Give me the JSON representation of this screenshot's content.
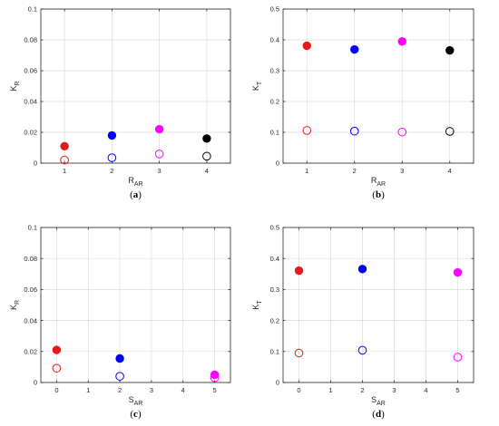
{
  "chart_data": [
    {
      "type": "scatter",
      "caption": {
        "open": "(",
        "letter": "a",
        "close": ")"
      },
      "xlabel": {
        "main": "R",
        "sub": "AR"
      },
      "ylabel": {
        "main": "K",
        "sub": "R"
      },
      "xlim": [
        0.5,
        4.5
      ],
      "ylim": [
        0,
        0.1
      ],
      "xticks": [
        1,
        2,
        3,
        4
      ],
      "xtick_labels": [
        "1",
        "2",
        "3",
        "4"
      ],
      "yticks": [
        0,
        0.02,
        0.04,
        0.06,
        0.08,
        0.1
      ],
      "ytick_labels": [
        "0",
        "0.02",
        "0.04",
        "0.06",
        "0.08",
        "0.1"
      ],
      "grid": true,
      "points": [
        {
          "x": 1,
          "y": 0.011,
          "filled": true,
          "color": "#e41a1c"
        },
        {
          "x": 1,
          "y": 0.002,
          "filled": false,
          "color": "#e41a1c"
        },
        {
          "x": 2,
          "y": 0.018,
          "filled": true,
          "color": "#0000ff"
        },
        {
          "x": 2,
          "y": 0.0035,
          "filled": false,
          "color": "#0000ff"
        },
        {
          "x": 3,
          "y": 0.022,
          "filled": true,
          "color": "#ff00ff"
        },
        {
          "x": 3,
          "y": 0.006,
          "filled": false,
          "color": "#ff00ff"
        },
        {
          "x": 4,
          "y": 0.016,
          "filled": true,
          "color": "#000000"
        },
        {
          "x": 4,
          "y": 0.0045,
          "filled": false,
          "color": "#000000"
        }
      ]
    },
    {
      "type": "scatter",
      "caption": {
        "open": "(",
        "letter": "b",
        "close": ")"
      },
      "xlabel": {
        "main": "R",
        "sub": "AR"
      },
      "ylabel": {
        "main": "K",
        "sub": "T"
      },
      "xlim": [
        0.5,
        4.5
      ],
      "ylim": [
        0,
        0.5
      ],
      "xticks": [
        1,
        2,
        3,
        4
      ],
      "xtick_labels": [
        "1",
        "2",
        "3",
        "4"
      ],
      "yticks": [
        0,
        0.1,
        0.2,
        0.3,
        0.4,
        0.5
      ],
      "ytick_labels": [
        "0",
        "0.1",
        "0.2",
        "0.3",
        "0.4",
        "0.5"
      ],
      "grid": true,
      "points": [
        {
          "x": 1,
          "y": 0.381,
          "filled": true,
          "color": "#e41a1c"
        },
        {
          "x": 1,
          "y": 0.106,
          "filled": false,
          "color": "#e41a1c"
        },
        {
          "x": 2,
          "y": 0.369,
          "filled": true,
          "color": "#0000ff"
        },
        {
          "x": 2,
          "y": 0.104,
          "filled": false,
          "color": "#0000ff"
        },
        {
          "x": 3,
          "y": 0.395,
          "filled": true,
          "color": "#ff00ff"
        },
        {
          "x": 3,
          "y": 0.101,
          "filled": false,
          "color": "#ff00ff"
        },
        {
          "x": 4,
          "y": 0.366,
          "filled": true,
          "color": "#000000"
        },
        {
          "x": 4,
          "y": 0.103,
          "filled": false,
          "color": "#000000"
        }
      ]
    },
    {
      "type": "scatter",
      "caption": {
        "open": "(",
        "letter": "c",
        "close": ")"
      },
      "xlabel": {
        "main": "S",
        "sub": "AR"
      },
      "ylabel": {
        "main": "K",
        "sub": "R"
      },
      "xlim": [
        -0.5,
        5.5
      ],
      "ylim": [
        0,
        0.1
      ],
      "xticks": [
        0,
        1,
        2,
        3,
        4,
        5
      ],
      "xtick_labels": [
        "0",
        "1",
        "2",
        "3",
        "4",
        "5"
      ],
      "yticks": [
        0,
        0.02,
        0.04,
        0.06,
        0.08,
        0.1
      ],
      "ytick_labels": [
        "0",
        "0.02",
        "0.04",
        "0.06",
        "0.08",
        "0.1"
      ],
      "grid": true,
      "points": [
        {
          "x": 0,
          "y": 0.021,
          "filled": true,
          "color": "#e41a1c"
        },
        {
          "x": 0,
          "y": 0.0092,
          "filled": false,
          "color": "#e41a1c"
        },
        {
          "x": 2,
          "y": 0.0155,
          "filled": true,
          "color": "#0000ff"
        },
        {
          "x": 2,
          "y": 0.004,
          "filled": false,
          "color": "#0000ff"
        },
        {
          "x": 5,
          "y": 0.005,
          "filled": true,
          "color": "#ff00ff"
        },
        {
          "x": 5,
          "y": 0.003,
          "filled": false,
          "color": "#ff00ff"
        }
      ]
    },
    {
      "type": "scatter",
      "caption": {
        "open": "(",
        "letter": "d",
        "close": ")"
      },
      "xlabel": {
        "main": "S",
        "sub": "AR"
      },
      "ylabel": {
        "main": "K",
        "sub": "T"
      },
      "xlim": [
        -0.5,
        5.5
      ],
      "ylim": [
        0,
        0.5
      ],
      "xticks": [
        0,
        1,
        2,
        3,
        4,
        5
      ],
      "xtick_labels": [
        "0",
        "1",
        "2",
        "3",
        "4",
        "5"
      ],
      "yticks": [
        0,
        0.1,
        0.2,
        0.3,
        0.4,
        0.5
      ],
      "ytick_labels": [
        "0",
        "0.1",
        "0.2",
        "0.3",
        "0.4",
        "0.5"
      ],
      "grid": true,
      "points": [
        {
          "x": 0,
          "y": 0.361,
          "filled": true,
          "color": "#e41a1c"
        },
        {
          "x": 0,
          "y": 0.095,
          "filled": false,
          "color": "#e41a1c"
        },
        {
          "x": 2,
          "y": 0.366,
          "filled": true,
          "color": "#0000ff"
        },
        {
          "x": 2,
          "y": 0.104,
          "filled": false,
          "color": "#0000ff"
        },
        {
          "x": 5,
          "y": 0.355,
          "filled": true,
          "color": "#ff00ff"
        },
        {
          "x": 5,
          "y": 0.082,
          "filled": false,
          "color": "#ff00ff"
        }
      ]
    }
  ]
}
